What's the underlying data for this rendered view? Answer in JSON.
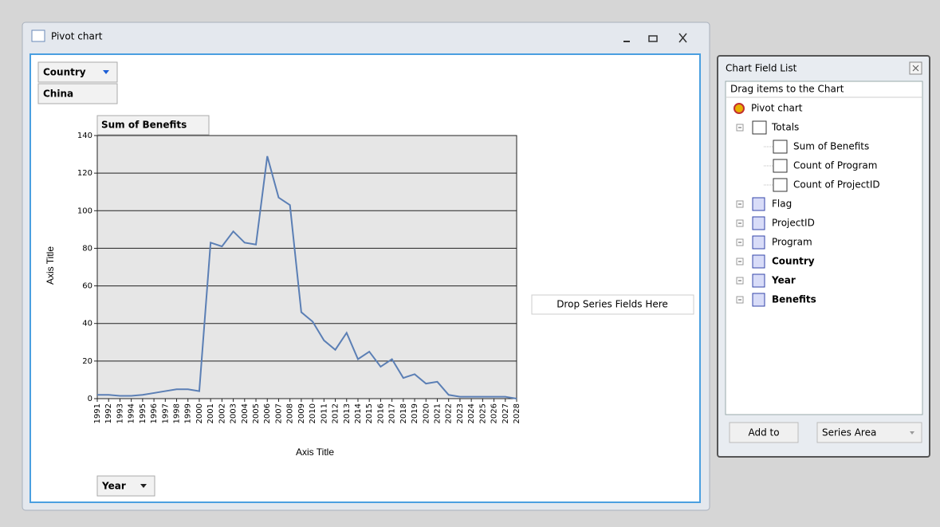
{
  "window": {
    "title": "Pivot chart"
  },
  "chart_data": {
    "type": "line",
    "filter_field": "Country",
    "filter_value": "China",
    "data_field": "Sum of Benefits",
    "category_field": "Year",
    "drop_zone": "Drop Series Fields Here",
    "y_label": "Axis Title",
    "x_label": "Axis Title",
    "categories": [
      "1991",
      "1992",
      "1993",
      "1994",
      "1995",
      "1996",
      "1997",
      "1998",
      "1999",
      "2000",
      "2001",
      "2002",
      "2003",
      "2004",
      "2005",
      "2006",
      "2007",
      "2008",
      "2009",
      "2010",
      "2011",
      "2012",
      "2013",
      "2014",
      "2015",
      "2016",
      "2017",
      "2018",
      "2019",
      "2020",
      "2021",
      "2022",
      "2023",
      "2024",
      "2025",
      "2026",
      "2027",
      "2028"
    ],
    "values": [
      2,
      2,
      1.5,
      1.5,
      2,
      3,
      4,
      5,
      5,
      4,
      83,
      81,
      89,
      83,
      82,
      129,
      107,
      103,
      46,
      41,
      31,
      26,
      35,
      21,
      25,
      17,
      21,
      11,
      13,
      8,
      9,
      2,
      1,
      1,
      1,
      1,
      1,
      0
    ],
    "color": "#5b7fb5",
    "ylim": [
      0,
      140
    ],
    "yticks": [
      0,
      20,
      40,
      60,
      80,
      100,
      120,
      140
    ],
    "grid": true
  },
  "field_list": {
    "title": "Chart Field List",
    "header": "Drag items to the Chart",
    "items": [
      {
        "label": "Pivot chart",
        "level": 0,
        "bold": false
      },
      {
        "label": "Totals",
        "level": 1,
        "bold": false
      },
      {
        "label": "Sum of Benefits",
        "level": 2,
        "bold": false
      },
      {
        "label": "Count of Program",
        "level": 2,
        "bold": false
      },
      {
        "label": "Count of ProjectID",
        "level": 2,
        "bold": false
      },
      {
        "label": "Flag",
        "level": 1,
        "bold": false
      },
      {
        "label": "ProjectID",
        "level": 1,
        "bold": false
      },
      {
        "label": "Program",
        "level": 1,
        "bold": false
      },
      {
        "label": "Country",
        "level": 1,
        "bold": true
      },
      {
        "label": "Year",
        "level": 1,
        "bold": true
      },
      {
        "label": "Benefits",
        "level": 1,
        "bold": true
      }
    ],
    "add_button": "Add to",
    "area_select": "Series Area"
  }
}
